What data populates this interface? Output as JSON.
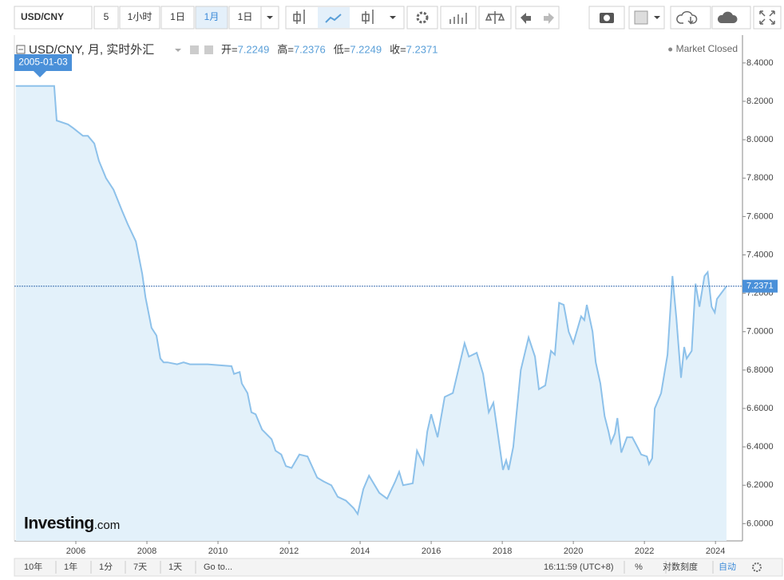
{
  "toolbar": {
    "symbol": "USD/CNY",
    "buttons": [
      "5",
      "1小时",
      "1日",
      "1月",
      "1日"
    ]
  },
  "chart_data": {
    "type": "line",
    "title": "USD/CNY, 月, 实时外汇",
    "status": "Market Closed",
    "crosshair_label": "2005-01-03",
    "ohlc": [
      {
        "label": "开=",
        "value": 7.2249
      },
      {
        "label": "高=",
        "value": 7.2376
      },
      {
        "label": "低=",
        "value": 7.2249
      },
      {
        "label": "收=",
        "value": 7.2371
      }
    ],
    "last_value": 7.2371,
    "logo": [
      "Investing",
      ".com"
    ],
    "color": "#8dc1ea",
    "x": [
      2004.31,
      2005.39,
      2005.46,
      2005.78,
      2005.93,
      2006.2,
      2006.34,
      2006.52,
      2006.65,
      2006.85,
      2007.06,
      2007.3,
      2007.46,
      2007.69,
      2007.87,
      2007.96,
      2008.13,
      2008.27,
      2008.38,
      2008.47,
      2008.58,
      2008.85,
      2009.03,
      2009.21,
      2009.71,
      2010.38,
      2010.45,
      2010.61,
      2010.67,
      2010.83,
      2010.94,
      2011.06,
      2011.24,
      2011.51,
      2011.62,
      2011.78,
      2011.91,
      2012.07,
      2012.29,
      2012.52,
      2012.79,
      2012.97,
      2013.19,
      2013.37,
      2013.6,
      2013.82,
      2013.93,
      2014.09,
      2014.25,
      2014.54,
      2014.76,
      2014.99,
      2015.1,
      2015.21,
      2015.48,
      2015.6,
      2015.78,
      2015.89,
      2016.0,
      2016.18,
      2016.38,
      2016.61,
      2016.94,
      2017.06,
      2017.28,
      2017.46,
      2017.62,
      2017.75,
      2018.02,
      2018.11,
      2018.18,
      2018.31,
      2018.52,
      2018.74,
      2018.92,
      2019.03,
      2019.21,
      2019.37,
      2019.48,
      2019.6,
      2019.73,
      2019.87,
      2020.0,
      2020.22,
      2020.31,
      2020.38,
      2020.54,
      2020.63,
      2020.76,
      2020.88,
      2020.99,
      2021.06,
      2021.17,
      2021.24,
      2021.35,
      2021.51,
      2021.66,
      2021.8,
      2021.91,
      2022.07,
      2022.13,
      2022.22,
      2022.29,
      2022.47,
      2022.65,
      2022.79,
      2022.9,
      2023.03,
      2023.12,
      2023.19,
      2023.33,
      2023.44,
      2023.55,
      2023.69,
      2023.78,
      2023.89,
      2023.98,
      2024.04,
      2024.16,
      2024.31
    ],
    "values": [
      8.28,
      8.28,
      8.1,
      8.08,
      8.06,
      8.02,
      8.02,
      7.98,
      7.89,
      7.8,
      7.74,
      7.63,
      7.56,
      7.47,
      7.3,
      7.18,
      7.02,
      6.98,
      6.86,
      6.84,
      6.84,
      6.83,
      6.84,
      6.83,
      6.83,
      6.82,
      6.78,
      6.79,
      6.73,
      6.68,
      6.58,
      6.57,
      6.49,
      6.44,
      6.38,
      6.36,
      6.3,
      6.29,
      6.36,
      6.35,
      6.24,
      6.22,
      6.2,
      6.14,
      6.12,
      6.08,
      6.05,
      6.18,
      6.25,
      6.16,
      6.13,
      6.22,
      6.27,
      6.2,
      6.21,
      6.38,
      6.31,
      6.48,
      6.57,
      6.45,
      6.66,
      6.68,
      6.94,
      6.87,
      6.89,
      6.78,
      6.58,
      6.63,
      6.28,
      6.33,
      6.28,
      6.4,
      6.8,
      6.97,
      6.87,
      6.7,
      6.72,
      6.9,
      6.88,
      7.15,
      7.14,
      7.0,
      6.94,
      7.08,
      7.06,
      7.14,
      7.0,
      6.84,
      6.73,
      6.56,
      6.48,
      6.42,
      6.47,
      6.55,
      6.37,
      6.45,
      6.45,
      6.4,
      6.36,
      6.35,
      6.31,
      6.34,
      6.6,
      6.68,
      6.88,
      7.29,
      7.07,
      6.76,
      6.92,
      6.86,
      6.9,
      7.25,
      7.13,
      7.29,
      7.31,
      7.13,
      7.1,
      7.17,
      7.2,
      7.2371
    ],
    "xlim": [
      2004.27,
      2024.76
    ],
    "xticks": [
      2006,
      2008,
      2010,
      2012,
      2014,
      2016,
      2018,
      2020,
      2022,
      2024
    ],
    "ylim": [
      5.91,
      8.545
    ],
    "yticks": [
      {
        "value": 6.0,
        "label": "6.0000"
      },
      {
        "value": 6.2,
        "label": "6.2000"
      },
      {
        "value": 6.4,
        "label": "6.4000"
      },
      {
        "value": 6.6,
        "label": "6.6000"
      },
      {
        "value": 6.8,
        "label": "6.8000"
      },
      {
        "value": 7.0,
        "label": "7.0000"
      },
      {
        "value": 7.2,
        "label": "7.2000"
      },
      {
        "value": 7.4,
        "label": "7.4000"
      },
      {
        "value": 7.6,
        "label": "7.6000"
      },
      {
        "value": 7.8,
        "label": "7.8000"
      },
      {
        "value": 8.0,
        "label": "8.0000"
      },
      {
        "value": 8.2,
        "label": "8.2000"
      },
      {
        "value": 8.4,
        "label": "8.4000"
      }
    ],
    "grid": false
  },
  "footer": {
    "ranges": [
      "10年",
      "1年",
      "1分",
      "7天",
      "1天",
      "Go to..."
    ],
    "time": "16:11:59 (UTC+8)",
    "options": [
      "%",
      "对数刻度",
      "自动"
    ]
  }
}
